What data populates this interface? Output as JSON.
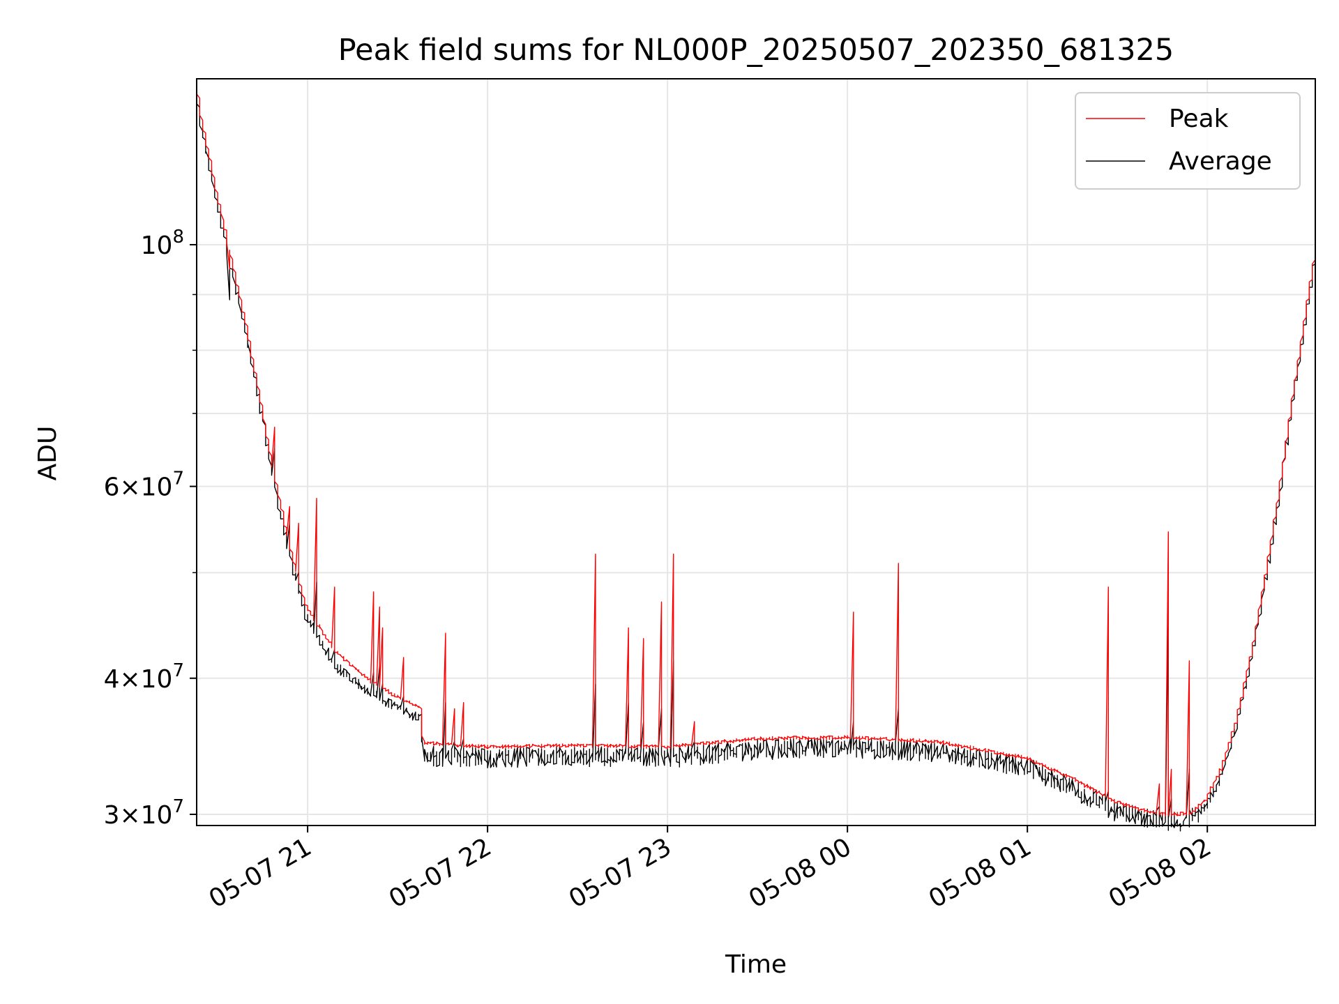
{
  "chart_data": {
    "type": "line",
    "title": "Peak field sums for NL000P_20250507_202350_681325",
    "xlabel": "Time",
    "ylabel": "ADU",
    "y_scale": "log",
    "ylim": [
      29300000,
      142000000
    ],
    "xlim": [
      "2025-05-07 20:23",
      "2025-05-08 02:36"
    ],
    "grid": true,
    "legend_position": "top-right",
    "x_ticks": [
      {
        "t": "2025-05-07 21:00",
        "label": "05-07 21"
      },
      {
        "t": "2025-05-07 22:00",
        "label": "05-07 22"
      },
      {
        "t": "2025-05-07 23:00",
        "label": "05-07 23"
      },
      {
        "t": "2025-05-08 00:00",
        "label": "05-08 00"
      },
      {
        "t": "2025-05-08 01:00",
        "label": "05-08 01"
      },
      {
        "t": "2025-05-08 02:00",
        "label": "05-08 02"
      }
    ],
    "y_ticks": [
      {
        "value": 30000000,
        "mantissa": "3",
        "exponent": "7"
      },
      {
        "value": 40000000,
        "mantissa": "4",
        "exponent": "7"
      },
      {
        "value": 60000000,
        "mantissa": "6",
        "exponent": "7"
      },
      {
        "value": 100000000,
        "mantissa": "",
        "exponent": "8"
      }
    ],
    "y_minor_ticks": [
      50000000,
      70000000,
      80000000,
      90000000
    ],
    "series": [
      {
        "name": "Peak",
        "color": "#ff0000",
        "x": [
          "2025-05-07 20:23",
          "2025-05-07 20:25",
          "2025-05-07 20:30",
          "2025-05-07 20:35",
          "2025-05-07 20:40",
          "2025-05-07 20:45",
          "2025-05-07 20:50",
          "2025-05-07 20:55",
          "2025-05-07 21:00",
          "2025-05-07 21:10",
          "2025-05-07 21:20",
          "2025-05-07 21:30",
          "2025-05-07 21:38",
          "2025-05-07 21:39",
          "2025-05-07 21:45",
          "2025-05-07 22:00",
          "2025-05-07 22:30",
          "2025-05-07 23:00",
          "2025-05-07 23:30",
          "2025-05-08 00:00",
          "2025-05-08 00:30",
          "2025-05-08 01:00",
          "2025-05-08 01:15",
          "2025-05-08 01:30",
          "2025-05-08 01:40",
          "2025-05-08 01:45",
          "2025-05-08 01:50",
          "2025-05-08 01:55",
          "2025-05-08 02:00",
          "2025-05-08 02:05",
          "2025-05-08 02:10",
          "2025-05-08 02:15",
          "2025-05-08 02:20",
          "2025-05-08 02:25",
          "2025-05-08 02:30",
          "2025-05-08 02:36"
        ],
        "values": [
          142000000,
          130000000,
          112000000,
          97000000,
          84000000,
          71000000,
          60000000,
          52000000,
          46500000,
          42300000,
          40000000,
          38500000,
          37600000,
          34900000,
          34800000,
          34600000,
          34700000,
          34600000,
          35200000,
          35300000,
          35000000,
          33800000,
          32400000,
          30800000,
          30200000,
          30000000,
          30000000,
          30100000,
          31000000,
          33000000,
          36500000,
          42000000,
          50000000,
          61000000,
          76000000,
          97000000
        ]
      },
      {
        "name": "Average",
        "color": "#000000",
        "x": [
          "2025-05-07 20:23",
          "2025-05-07 20:25",
          "2025-05-07 20:30",
          "2025-05-07 20:35",
          "2025-05-07 20:40",
          "2025-05-07 20:45",
          "2025-05-07 20:50",
          "2025-05-07 20:55",
          "2025-05-07 21:00",
          "2025-05-07 21:10",
          "2025-05-07 21:20",
          "2025-05-07 21:30",
          "2025-05-07 21:38",
          "2025-05-07 21:39",
          "2025-05-07 21:45",
          "2025-05-07 22:00",
          "2025-05-07 22:30",
          "2025-05-07 23:00",
          "2025-05-07 23:30",
          "2025-05-08 00:00",
          "2025-05-08 00:30",
          "2025-05-08 01:00",
          "2025-05-08 01:15",
          "2025-05-08 01:30",
          "2025-05-08 01:40",
          "2025-05-08 01:45",
          "2025-05-08 01:50",
          "2025-05-08 01:55",
          "2025-05-08 02:00",
          "2025-05-08 02:05",
          "2025-05-08 02:10",
          "2025-05-08 02:15",
          "2025-05-08 02:20",
          "2025-05-08 02:25",
          "2025-05-08 02:30",
          "2025-05-08 02:36"
        ],
        "values": [
          138000000,
          128000000,
          110000000,
          95000000,
          82500000,
          70000000,
          59000000,
          51000000,
          45500000,
          41000000,
          39000000,
          37600000,
          36700000,
          34000000,
          33900000,
          33800000,
          33900000,
          33800000,
          34400000,
          34600000,
          34200000,
          33200000,
          31800000,
          30200000,
          29700000,
          29600000,
          29500000,
          29800000,
          30500000,
          32500000,
          36000000,
          41500000,
          49500000,
          60500000,
          75500000,
          96000000
        ]
      }
    ],
    "spikes": [
      {
        "t": "2025-05-07 20:34",
        "peak": 95000000,
        "avg": 89000000
      },
      {
        "t": "2025-05-07 20:49",
        "peak": 68000000,
        "avg": 65000000
      },
      {
        "t": "2025-05-07 20:54",
        "peak": 57500000,
        "avg": 55500000
      },
      {
        "t": "2025-05-07 20:57",
        "peak": 55500000,
        "avg": 50000000
      },
      {
        "t": "2025-05-07 21:03",
        "peak": 58500000,
        "avg": 49000000
      },
      {
        "t": "2025-05-07 21:09",
        "peak": 48500000,
        "avg": 42500000
      },
      {
        "t": "2025-05-07 21:22",
        "peak": 48000000,
        "avg": 40500000
      },
      {
        "t": "2025-05-07 21:24",
        "peak": 46500000,
        "avg": 41000000
      },
      {
        "t": "2025-05-07 21:25",
        "peak": 44500000,
        "avg": 39500000
      },
      {
        "t": "2025-05-07 21:32",
        "peak": 41800000,
        "avg": 38500000
      },
      {
        "t": "2025-05-07 21:46",
        "peak": 44000000,
        "avg": 38000000
      },
      {
        "t": "2025-05-07 21:49",
        "peak": 37500000,
        "avg": 35000000
      },
      {
        "t": "2025-05-07 21:52",
        "peak": 38000000,
        "avg": 35200000
      },
      {
        "t": "2025-05-07 22:36",
        "peak": 52000000,
        "avg": 39500000
      },
      {
        "t": "2025-05-07 22:47",
        "peak": 44500000,
        "avg": 38000000
      },
      {
        "t": "2025-05-07 22:52",
        "peak": 43500000,
        "avg": 36500000
      },
      {
        "t": "2025-05-07 22:58",
        "peak": 47000000,
        "avg": 37500000
      },
      {
        "t": "2025-05-07 23:02",
        "peak": 52000000,
        "avg": 41500000
      },
      {
        "t": "2025-05-07 23:09",
        "peak": 36500000,
        "avg": 35000000
      },
      {
        "t": "2025-05-08 00:02",
        "peak": 46000000,
        "avg": 36500000
      },
      {
        "t": "2025-05-08 00:17",
        "peak": 51000000,
        "avg": 37500000
      },
      {
        "t": "2025-05-08 01:27",
        "peak": 48500000,
        "avg": 31500000
      },
      {
        "t": "2025-05-08 01:44",
        "peak": 32000000,
        "avg": 30500000
      },
      {
        "t": "2025-05-08 01:47",
        "peak": 54500000,
        "avg": 45500000
      },
      {
        "t": "2025-05-08 01:48",
        "peak": 33000000,
        "avg": 31000000
      },
      {
        "t": "2025-05-08 01:54",
        "peak": 41500000,
        "avg": 33000000
      }
    ]
  }
}
